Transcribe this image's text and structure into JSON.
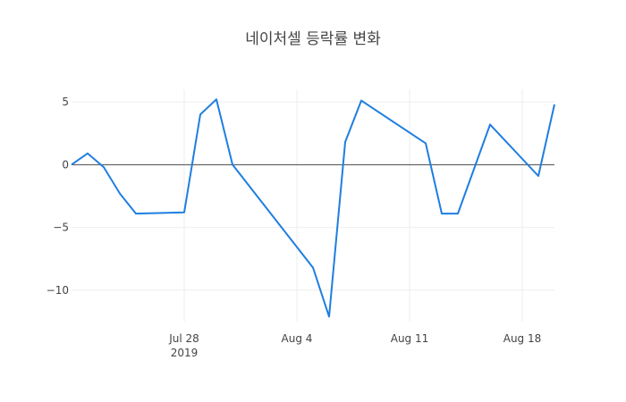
{
  "chart_data": {
    "type": "line",
    "title": "네이처셀 등락률 변화",
    "xlabel": "",
    "ylabel": "",
    "x_axis": {
      "type": "date",
      "range": [
        "2019-07-21",
        "2019-08-20"
      ],
      "ticks": [
        {
          "date": "2019-07-28",
          "label": "Jul 28",
          "sublabel": "2019"
        },
        {
          "date": "2019-08-04",
          "label": "Aug 4",
          "sublabel": ""
        },
        {
          "date": "2019-08-11",
          "label": "Aug 11",
          "sublabel": ""
        },
        {
          "date": "2019-08-18",
          "label": "Aug 18",
          "sublabel": ""
        }
      ]
    },
    "y_axis": {
      "range": [
        -12.5,
        6
      ],
      "ticks": [
        {
          "value": 5,
          "label": "5"
        },
        {
          "value": 0,
          "label": "0"
        },
        {
          "value": -5,
          "label": "−5"
        },
        {
          "value": -10,
          "label": "−10"
        }
      ]
    },
    "grid": true,
    "zero_line": true,
    "series": [
      {
        "color": "#1f7ee0",
        "x": [
          "2019-07-21",
          "2019-07-22",
          "2019-07-23",
          "2019-07-24",
          "2019-07-25",
          "2019-07-28",
          "2019-07-29",
          "2019-07-30",
          "2019-07-31",
          "2019-08-05",
          "2019-08-06",
          "2019-08-07",
          "2019-08-08",
          "2019-08-12",
          "2019-08-13",
          "2019-08-14",
          "2019-08-16",
          "2019-08-19",
          "2019-08-20"
        ],
        "y": [
          0,
          0.9,
          -0.2,
          -2.3,
          -3.9,
          -3.8,
          4.0,
          5.2,
          0.0,
          -8.2,
          -12.1,
          1.8,
          5.1,
          1.7,
          -3.9,
          -3.9,
          3.2,
          -0.9,
          4.8
        ]
      }
    ]
  }
}
